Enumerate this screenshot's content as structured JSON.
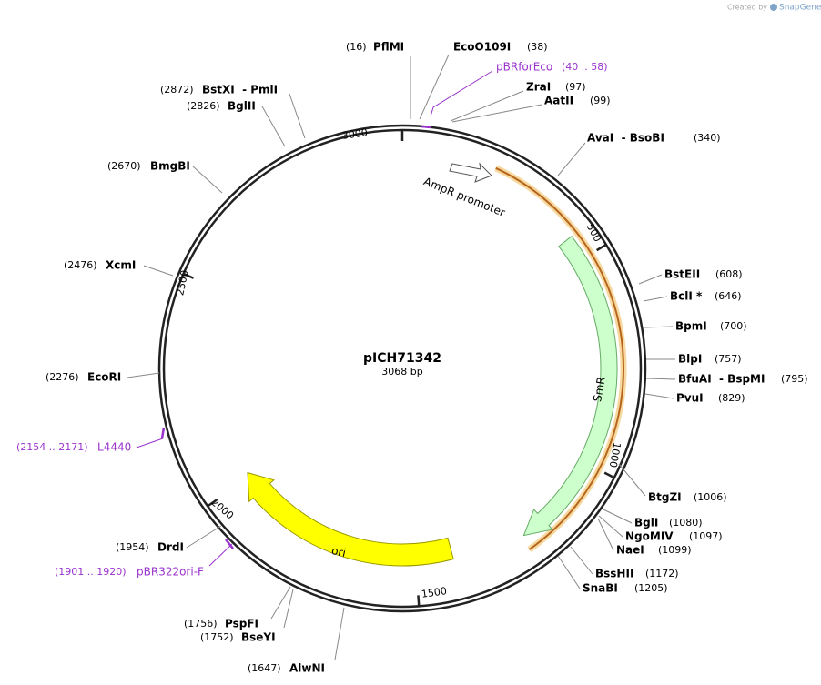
{
  "branding": {
    "created_by": "Created by",
    "app": "SnapGene"
  },
  "plasmid": {
    "name": "pICH71342",
    "length": "3068 bp"
  },
  "ring_ticks": [
    "3000",
    "500",
    "1000",
    "1500",
    "2000",
    "2500"
  ],
  "features": [
    "AmpR promoter",
    "SmR",
    "ori"
  ],
  "sites": [
    {
      "name": "PflMI",
      "position": "(16)"
    },
    {
      "name": "EcoO109I",
      "position": "(38)"
    },
    {
      "name": "ZraI",
      "position": "(97)"
    },
    {
      "name": "AatII",
      "position": "(99)"
    },
    {
      "name": "AvaI  - BsoBI",
      "position": "(340)"
    },
    {
      "name": "BstEII",
      "position": "(608)"
    },
    {
      "name": "BclI *",
      "position": "(646)"
    },
    {
      "name": "BpmI",
      "position": "(700)"
    },
    {
      "name": "BlpI",
      "position": "(757)"
    },
    {
      "name": "BfuAI  - BspMI",
      "position": "(795)"
    },
    {
      "name": "PvuI",
      "position": "(829)"
    },
    {
      "name": "BtgZI",
      "position": "(1006)"
    },
    {
      "name": "BglI",
      "position": "(1080)"
    },
    {
      "name": "NgoMIV",
      "position": "(1097)"
    },
    {
      "name": "NaeI",
      "position": "(1099)"
    },
    {
      "name": "BssHII",
      "position": "(1172)"
    },
    {
      "name": "SnaBI",
      "position": "(1205)"
    },
    {
      "name": "AlwNI",
      "position": "(1647)"
    },
    {
      "name": "BseYI",
      "position": "(1752)"
    },
    {
      "name": "PspFI",
      "position": "(1756)"
    },
    {
      "name": "DrdI",
      "position": "(1954)"
    },
    {
      "name": "EcoRI",
      "position": "(2276)"
    },
    {
      "name": "XcmI",
      "position": "(2476)"
    },
    {
      "name": "BmgBI",
      "position": "(2670)"
    },
    {
      "name": "BglII",
      "position": "(2826)"
    },
    {
      "name": "BstXI  - PmlI",
      "position": "(2872)"
    }
  ],
  "primers": [
    {
      "name": "pBRforEco",
      "range": "(40 .. 58)"
    },
    {
      "name": "L4440",
      "range": "(2154 .. 2171)"
    },
    {
      "name": "pBR322ori-F",
      "range": "(1901 .. 1920)"
    }
  ]
}
